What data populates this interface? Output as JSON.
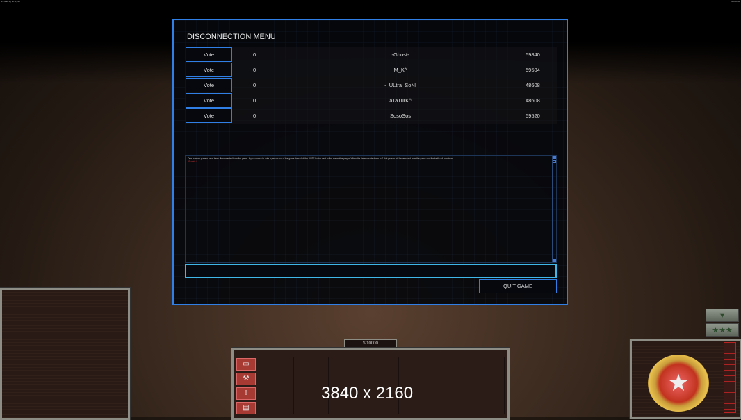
{
  "hud_top_left": "FPS 30.0 | 27.4 | 48",
  "hud_top_right": "00:00:00",
  "dialog": {
    "title": "DISCONNECTION MENU",
    "players": [
      {
        "vote_label": "Vote",
        "votes": "0",
        "name": "-Ghost-",
        "ping": "59840"
      },
      {
        "vote_label": "Vote",
        "votes": "0",
        "name": "M_K^",
        "ping": "59504"
      },
      {
        "vote_label": "Vote",
        "votes": "0",
        "name": "-_ULtra_SoNI",
        "ping": "48608"
      },
      {
        "vote_label": "Vote",
        "votes": "0",
        "name": "aTaTurK^",
        "ping": "48608"
      },
      {
        "vote_label": "Vote",
        "votes": "0",
        "name": "SosoSos",
        "ping": "59520"
      }
    ],
    "message": "One or more players have been disconnected from the game. If you choose to vote a person out of the game then click the VOTE button next to the respective player. When the timer counts down to 0 that person will be removed from the game and the battle will continue.",
    "message_red": "-Ghost-: 0",
    "chat_value": "",
    "quit_label": "QUIT GAME"
  },
  "hud": {
    "money": "$ 10000",
    "commands": [
      {
        "icon": "options-icon"
      },
      {
        "icon": "wrench-icon"
      },
      {
        "icon": "alert-icon"
      },
      {
        "icon": "chat-icon"
      }
    ],
    "rank_stars": "★★★",
    "general_star": "★"
  },
  "overlay_resolution": "3840 x 2160",
  "colors": {
    "accent": "#2f7fe6",
    "chat_border": "#3fb7e8",
    "hud_red": "#a83a34"
  }
}
